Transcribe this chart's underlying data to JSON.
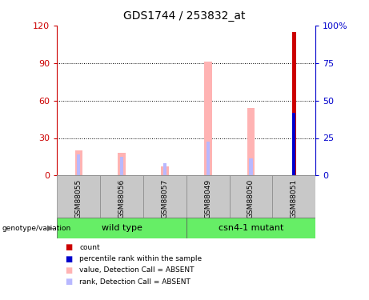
{
  "title": "GDS1744 / 253832_at",
  "samples": [
    "GSM88055",
    "GSM88056",
    "GSM88057",
    "GSM88049",
    "GSM88050",
    "GSM88051"
  ],
  "value_absent": [
    20,
    18,
    7,
    91,
    54,
    0
  ],
  "rank_absent": [
    17,
    15,
    10,
    27,
    14,
    0
  ],
  "count_bar": [
    0,
    0,
    0,
    0,
    0,
    115
  ],
  "percentile_bar": [
    0,
    0,
    0,
    0,
    0,
    42
  ],
  "ylim_left": [
    0,
    120
  ],
  "ylim_right": [
    0,
    100
  ],
  "yticks_left": [
    0,
    30,
    60,
    90,
    120
  ],
  "yticks_right": [
    0,
    25,
    50,
    75,
    100
  ],
  "yticklabels_right": [
    "0",
    "25",
    "50",
    "75",
    "100%"
  ],
  "left_axis_color": "#cc0000",
  "right_axis_color": "#0000cc",
  "bar_color_value": "#ffb3b3",
  "bar_color_rank": "#b8b8ff",
  "bar_color_count": "#cc0000",
  "bar_color_percentile": "#0000cc",
  "group_bg": "#c8c8c8",
  "group_label_bg": "#66ee66",
  "genotype_label": "genotype/variation",
  "groups": [
    {
      "label": "wild type",
      "start": 0,
      "end": 2
    },
    {
      "label": "csn4-1 mutant",
      "start": 3,
      "end": 5
    }
  ],
  "legend_items": [
    {
      "color": "#cc0000",
      "label": "count"
    },
    {
      "color": "#0000cc",
      "label": "percentile rank within the sample"
    },
    {
      "color": "#ffb3b3",
      "label": "value, Detection Call = ABSENT"
    },
    {
      "color": "#b8b8ff",
      "label": "rank, Detection Call = ABSENT"
    }
  ]
}
